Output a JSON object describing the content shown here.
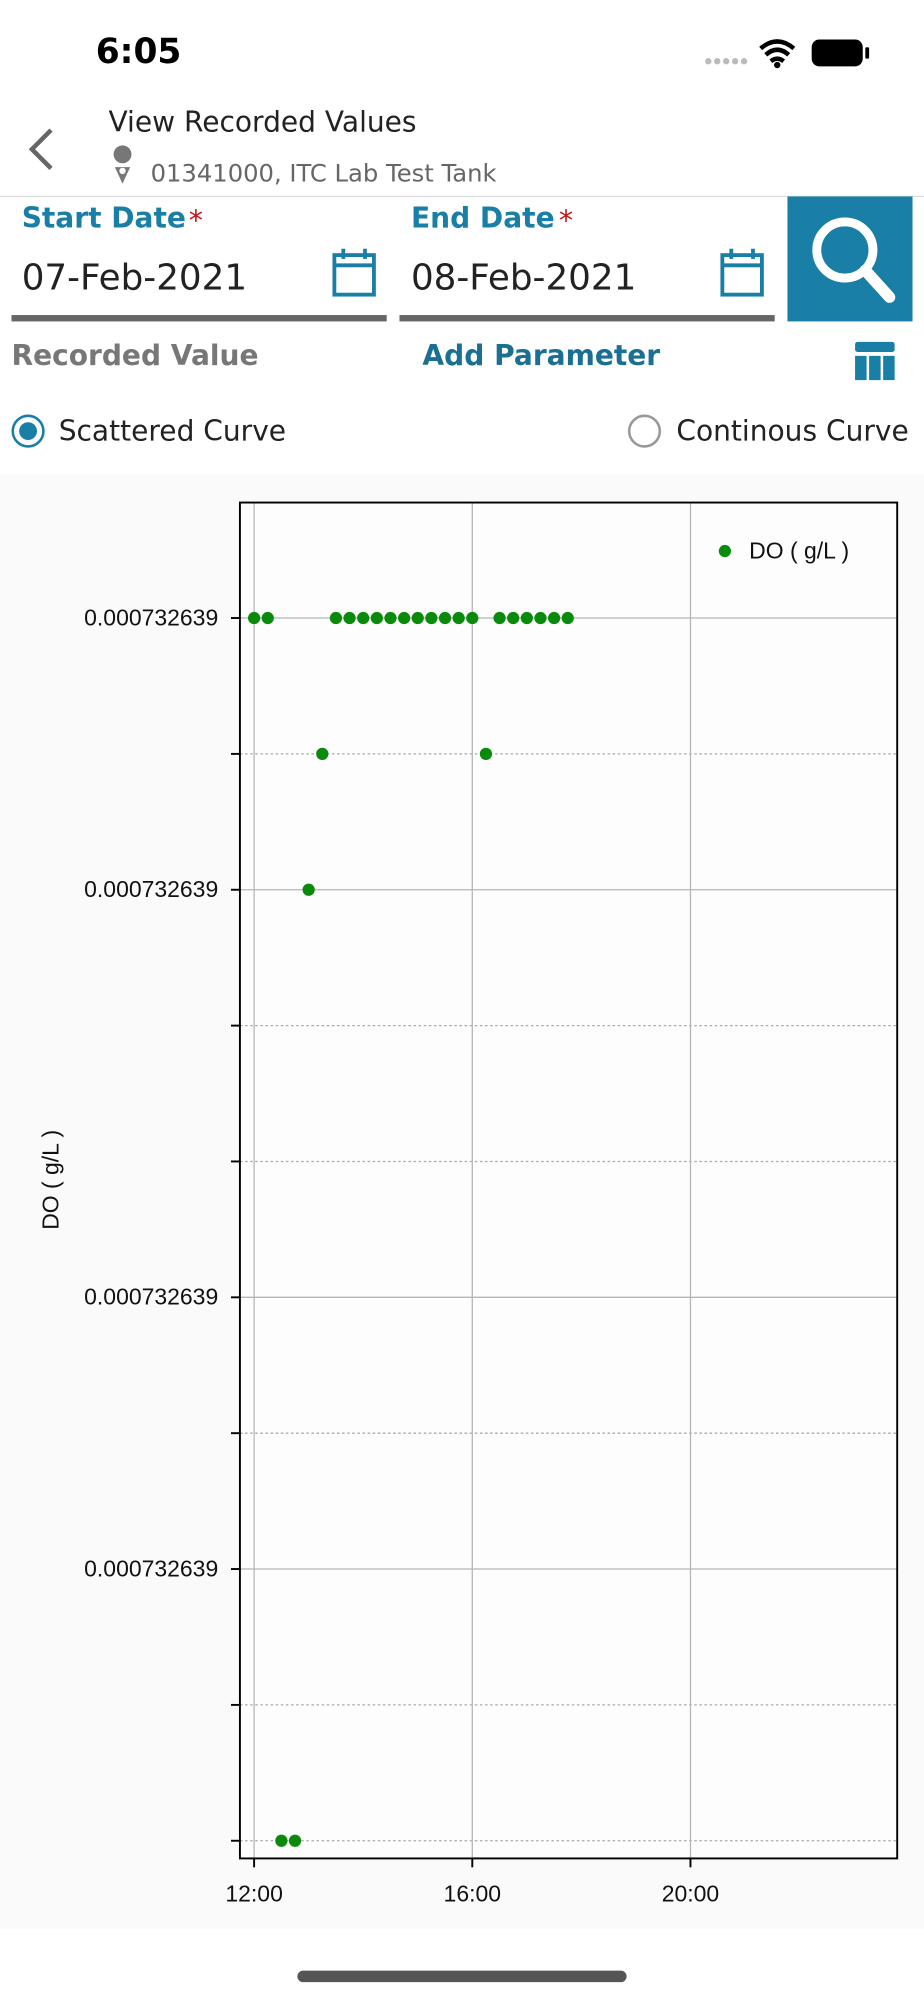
{
  "status_bar": {
    "time": "6:05"
  },
  "header": {
    "title": "View Recorded Values",
    "location": "01341000, ITC Lab Test Tank"
  },
  "form": {
    "start_date": {
      "label": "Start Date",
      "required": "*",
      "value": "07-Feb-2021"
    },
    "end_date": {
      "label": "End Date",
      "required": "*",
      "value": "08-Feb-2021"
    }
  },
  "options": {
    "recorded_value": "Recorded Value",
    "add_parameter": "Add Parameter",
    "curves": [
      {
        "label": "Scattered Curve",
        "selected": true
      },
      {
        "label": "Continous Curve",
        "selected": false
      }
    ]
  },
  "chart_data": {
    "type": "scatter",
    "ylabel": "DO ( g/L )",
    "legend": "upper right",
    "grid": true,
    "series": [
      {
        "name": "DO ( g/L )",
        "color": "#0a8a0a",
        "x": [
          12,
          12.25,
          12.5,
          12.75,
          13,
          13.25,
          13.5,
          13.75,
          14,
          14.25,
          14.5,
          14.75,
          15,
          15.25,
          15.5,
          15.75,
          16,
          16.25,
          16.5,
          16.75,
          17,
          17.25,
          17.5,
          17.75
        ],
        "values": [
          0.00073263945,
          0.00073263945,
          0.00073263855,
          0.00073263855,
          0.00073263925,
          0.00073263935,
          0.00073263945,
          0.00073263945,
          0.00073263945,
          0.00073263945,
          0.00073263945,
          0.00073263945,
          0.00073263945,
          0.00073263945,
          0.00073263945,
          0.00073263945,
          0.00073263945,
          0.00073263935,
          0.00073263945,
          0.00073263945,
          0.00073263945,
          0.00073263945,
          0.00073263945,
          0.00073263945
        ]
      }
    ],
    "xlim": [
      11.74,
      23.79
    ],
    "xticks": [
      {
        "value": 12,
        "label": "12:00"
      },
      {
        "value": 16,
        "label": "16:00"
      },
      {
        "value": 20,
        "label": "20:00"
      }
    ],
    "ylim": [
      0.000732638537,
      0.000732639535
    ],
    "yticks": [
      {
        "value": 0.00073263945,
        "label": "0.000732639"
      },
      {
        "value": 0.00073263925,
        "label": "0.000732639"
      },
      {
        "value": 0.00073263895,
        "label": "0.000732639"
      },
      {
        "value": 0.00073263875,
        "label": "0.000732639"
      }
    ],
    "yminor_ticks": [
      0.00073263935,
      0.00073263915,
      0.00073263905,
      0.00073263885,
      0.00073263865,
      0.00073263855
    ]
  }
}
